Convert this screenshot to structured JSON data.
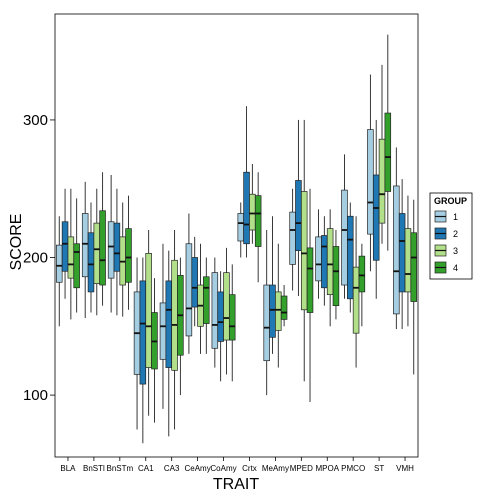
{
  "chart_data": {
    "type": "boxplot",
    "xlabel": "TRAIT",
    "ylabel": "SCORE",
    "ylim": [
      55,
      377
    ],
    "yticks": [
      100,
      200,
      300
    ],
    "categories": [
      "BLA",
      "BnSTl",
      "BnSTm",
      "CA1",
      "CA3",
      "CeAmy",
      "CoAmy",
      "Crtx",
      "MeAmy",
      "MPED",
      "MPOA",
      "PMCO",
      "ST",
      "VMH"
    ],
    "legend": {
      "title": "GROUP",
      "position": "right",
      "entries": [
        {
          "label": "1",
          "color": "#a6cee3"
        },
        {
          "label": "2",
          "color": "#1f78b4"
        },
        {
          "label": "3",
          "color": "#b2df8a"
        },
        {
          "label": "4",
          "color": "#33a02c"
        }
      ]
    },
    "series": [
      {
        "name": "1",
        "color": "#a6cee3",
        "boxes": [
          {
            "whislo": 150,
            "q1": 182,
            "med": 194,
            "q3": 209,
            "whishi": 230
          },
          {
            "whislo": 156,
            "q1": 186,
            "med": 210,
            "q3": 232,
            "whishi": 255
          },
          {
            "whislo": 160,
            "q1": 185,
            "med": 208,
            "q3": 226,
            "whishi": 260
          },
          {
            "whislo": 75,
            "q1": 115,
            "med": 145,
            "q3": 175,
            "whishi": 200
          },
          {
            "whislo": 90,
            "q1": 126,
            "med": 150,
            "q3": 167,
            "whishi": 210
          },
          {
            "whislo": 130,
            "q1": 143,
            "med": 163,
            "q3": 210,
            "whishi": 232
          },
          {
            "whislo": 120,
            "q1": 134,
            "med": 151,
            "q3": 189,
            "whishi": 200
          },
          {
            "whislo": 200,
            "q1": 212,
            "med": 225,
            "q3": 232,
            "whishi": 240
          },
          {
            "whislo": 100,
            "q1": 125,
            "med": 149,
            "q3": 180,
            "whishi": 220
          },
          {
            "whislo": 176,
            "q1": 195,
            "med": 220,
            "q3": 233,
            "whishi": 250
          },
          {
            "whislo": 170,
            "q1": 183,
            "med": 195,
            "q3": 215,
            "whishi": 235
          },
          {
            "whislo": 170,
            "q1": 180,
            "med": 220,
            "q3": 249,
            "whishi": 275
          },
          {
            "whislo": 190,
            "q1": 217,
            "med": 240,
            "q3": 293,
            "whishi": 333
          },
          {
            "whislo": 148,
            "q1": 159,
            "med": 190,
            "q3": 252,
            "whishi": 280
          }
        ]
      },
      {
        "name": "2",
        "color": "#1f78b4",
        "boxes": [
          {
            "whislo": 170,
            "q1": 190,
            "med": 210,
            "q3": 226,
            "whishi": 250
          },
          {
            "whislo": 160,
            "q1": 175,
            "med": 195,
            "q3": 218,
            "whishi": 240
          },
          {
            "whislo": 158,
            "q1": 190,
            "med": 203,
            "q3": 225,
            "whishi": 250
          },
          {
            "whislo": 65,
            "q1": 108,
            "med": 152,
            "q3": 183,
            "whishi": 200
          },
          {
            "whislo": 70,
            "q1": 120,
            "med": 162,
            "q3": 183,
            "whishi": 205
          },
          {
            "whislo": 150,
            "q1": 164,
            "med": 178,
            "q3": 200,
            "whishi": 215
          },
          {
            "whislo": 110,
            "q1": 139,
            "med": 153,
            "q3": 175,
            "whishi": 190
          },
          {
            "whislo": 200,
            "q1": 210,
            "med": 224,
            "q3": 262,
            "whishi": 310
          },
          {
            "whislo": 130,
            "q1": 142,
            "med": 162,
            "q3": 180,
            "whishi": 230
          },
          {
            "whislo": 172,
            "q1": 205,
            "med": 225,
            "q3": 256,
            "whishi": 300
          },
          {
            "whislo": 165,
            "q1": 178,
            "med": 208,
            "q3": 216,
            "whishi": 230
          },
          {
            "whislo": 160,
            "q1": 170,
            "med": 213,
            "q3": 230,
            "whishi": 240
          },
          {
            "whislo": 170,
            "q1": 198,
            "med": 236,
            "q3": 260,
            "whishi": 300
          },
          {
            "whislo": 148,
            "q1": 175,
            "med": 212,
            "q3": 232,
            "whishi": 257
          }
        ]
      },
      {
        "name": "3",
        "color": "#b2df8a",
        "boxes": [
          {
            "whislo": 155,
            "q1": 185,
            "med": 195,
            "q3": 215,
            "whishi": 250
          },
          {
            "whislo": 158,
            "q1": 181,
            "med": 206,
            "q3": 225,
            "whishi": 250
          },
          {
            "whislo": 157,
            "q1": 180,
            "med": 197,
            "q3": 215,
            "whishi": 240
          },
          {
            "whislo": 85,
            "q1": 120,
            "med": 150,
            "q3": 203,
            "whishi": 220
          },
          {
            "whislo": 75,
            "q1": 118,
            "med": 151,
            "q3": 198,
            "whishi": 220
          },
          {
            "whislo": 130,
            "q1": 150,
            "med": 165,
            "q3": 180,
            "whishi": 210
          },
          {
            "whislo": 115,
            "q1": 140,
            "med": 156,
            "q3": 189,
            "whishi": 207
          },
          {
            "whislo": 210,
            "q1": 220,
            "med": 232,
            "q3": 246,
            "whishi": 268
          },
          {
            "whislo": 120,
            "q1": 147,
            "med": 162,
            "q3": 175,
            "whishi": 210
          },
          {
            "whislo": 110,
            "q1": 162,
            "med": 203,
            "q3": 248,
            "whishi": 300
          },
          {
            "whislo": 150,
            "q1": 173,
            "med": 195,
            "q3": 221,
            "whishi": 235
          },
          {
            "whislo": 120,
            "q1": 145,
            "med": 178,
            "q3": 193,
            "whishi": 230
          },
          {
            "whislo": 210,
            "q1": 225,
            "med": 246,
            "q3": 286,
            "whishi": 340
          },
          {
            "whislo": 150,
            "q1": 175,
            "med": 188,
            "q3": 221,
            "whishi": 245
          }
        ]
      },
      {
        "name": "4",
        "color": "#33a02c",
        "boxes": [
          {
            "whislo": 160,
            "q1": 178,
            "med": 204,
            "q3": 210,
            "whishi": 243
          },
          {
            "whislo": 165,
            "q1": 180,
            "med": 198,
            "q3": 234,
            "whishi": 262
          },
          {
            "whislo": 162,
            "q1": 182,
            "med": 200,
            "q3": 221,
            "whishi": 245
          },
          {
            "whislo": 80,
            "q1": 119,
            "med": 139,
            "q3": 160,
            "whishi": 185
          },
          {
            "whislo": 100,
            "q1": 129,
            "med": 158,
            "q3": 187,
            "whishi": 200
          },
          {
            "whislo": 130,
            "q1": 152,
            "med": 178,
            "q3": 186,
            "whishi": 200
          },
          {
            "whislo": 110,
            "q1": 140,
            "med": 150,
            "q3": 173,
            "whishi": 195
          },
          {
            "whislo": 182,
            "q1": 208,
            "med": 232,
            "q3": 245,
            "whishi": 262
          },
          {
            "whislo": 150,
            "q1": 155,
            "med": 160,
            "q3": 172,
            "whishi": 180
          },
          {
            "whislo": 95,
            "q1": 160,
            "med": 192,
            "q3": 207,
            "whishi": 250
          },
          {
            "whislo": 155,
            "q1": 165,
            "med": 190,
            "q3": 208,
            "whishi": 220
          },
          {
            "whislo": 150,
            "q1": 175,
            "med": 187,
            "q3": 201,
            "whishi": 210
          },
          {
            "whislo": 205,
            "q1": 248,
            "med": 273,
            "q3": 305,
            "whishi": 362
          },
          {
            "whislo": 115,
            "q1": 168,
            "med": 200,
            "q3": 218,
            "whishi": 242
          }
        ]
      }
    ]
  }
}
